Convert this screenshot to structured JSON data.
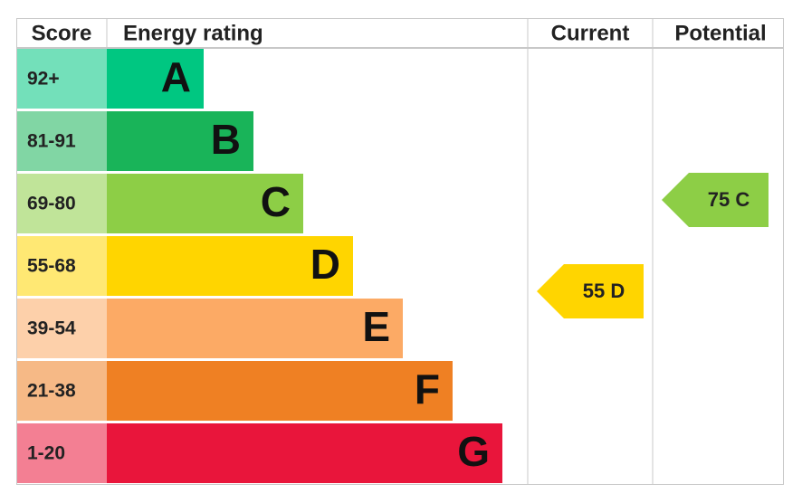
{
  "header": {
    "score": "Score",
    "energy_rating": "Energy rating",
    "current": "Current",
    "potential": "Potential"
  },
  "bands": [
    {
      "score": "92+",
      "letter": "A",
      "color": "#00c781"
    },
    {
      "score": "81-91",
      "letter": "B",
      "color": "#19b459"
    },
    {
      "score": "69-80",
      "letter": "C",
      "color": "#8dce46"
    },
    {
      "score": "55-68",
      "letter": "D",
      "color": "#ffd500"
    },
    {
      "score": "39-54",
      "letter": "E",
      "color": "#fcaa65"
    },
    {
      "score": "21-38",
      "letter": "F",
      "color": "#ef8023"
    },
    {
      "score": "1-20",
      "letter": "G",
      "color": "#e9153b"
    }
  ],
  "current": {
    "label": "55 D",
    "color": "#ffd500"
  },
  "potential": {
    "label": "75 C",
    "color": "#8dce46"
  }
}
